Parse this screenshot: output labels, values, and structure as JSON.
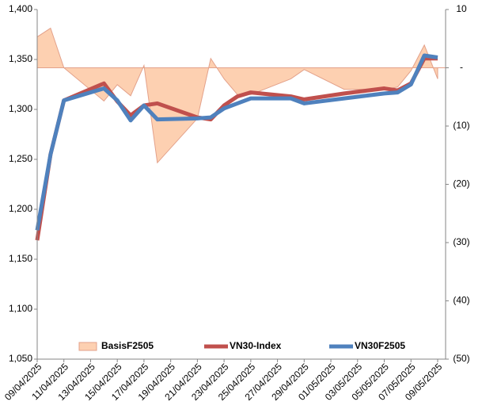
{
  "chart_data": {
    "type": "combo",
    "x": [
      "09/04/2025",
      "10/04/2025",
      "11/04/2025",
      "14/04/2025",
      "15/04/2025",
      "16/04/2025",
      "17/04/2025",
      "18/04/2025",
      "21/04/2025",
      "22/04/2025",
      "23/04/2025",
      "24/04/2025",
      "25/04/2025",
      "28/04/2025",
      "29/04/2025",
      "02/05/2025",
      "05/05/2025",
      "06/05/2025",
      "07/05/2025",
      "08/05/2025",
      "09/05/2025"
    ],
    "xlim": [
      "09/04/2025",
      "09/05/2025"
    ],
    "xticks": [
      "09/04/2025",
      "11/04/2025",
      "13/04/2025",
      "15/04/2025",
      "17/04/2025",
      "19/04/2025",
      "21/04/2025",
      "23/04/2025",
      "25/04/2025",
      "27/04/2025",
      "29/04/2025",
      "01/05/2025",
      "03/05/2025",
      "05/05/2025",
      "07/05/2025",
      "09/05/2025"
    ],
    "ylim": [
      1050,
      1400
    ],
    "yticks": [
      {
        "value": 1050,
        "label": "1,050"
      },
      {
        "value": 1100,
        "label": "1,100"
      },
      {
        "value": 1150,
        "label": "1,150"
      },
      {
        "value": 1200,
        "label": "1,200"
      },
      {
        "value": 1250,
        "label": "1,250"
      },
      {
        "value": 1300,
        "label": "1,300"
      },
      {
        "value": 1350,
        "label": "1,350"
      },
      {
        "value": 1400,
        "label": "1,400"
      }
    ],
    "y2lim": [
      -50,
      10
    ],
    "y2ticks": [
      {
        "value": 10,
        "label": "10"
      },
      {
        "value": 0,
        "label": "-"
      },
      {
        "value": -10,
        "label": "(10)"
      },
      {
        "value": -20,
        "label": "(20)"
      },
      {
        "value": -30,
        "label": "(30)"
      },
      {
        "value": -40,
        "label": "(40)"
      },
      {
        "value": -50,
        "label": "(50)"
      }
    ],
    "legend": "bottom",
    "series": [
      {
        "name": "BasisF2505",
        "kind": "area",
        "axis": "y2",
        "color": "#fdd0b1",
        "values": [
          5.3,
          6.8,
          0,
          -5.7,
          -2.9,
          -4.8,
          0.4,
          -16.3,
          -8.7,
          1.6,
          -1.9,
          -4.6,
          -4.6,
          -1.9,
          -0.3,
          -3.7,
          -3.7,
          -3.3,
          -0.5,
          3.9,
          -1.9
        ]
      },
      {
        "name": "VN30-Index",
        "kind": "line",
        "color": "#c0504d",
        "values": [
          1169,
          1255,
          1309,
          1326,
          1308,
          1294,
          1304,
          1306,
          1292,
          1290,
          1304,
          1313,
          1317,
          1313,
          1310,
          1316,
          1321,
          1319,
          1326,
          1351,
          1351
        ]
      },
      {
        "name": "VN30F2505",
        "kind": "line",
        "color": "#4f81bd",
        "values": [
          1179,
          1255,
          1309,
          1321,
          1309,
          1289,
          1304,
          1290,
          1291,
          1292,
          1301,
          1306,
          1311,
          1311,
          1306,
          1311,
          1316,
          1317,
          1325,
          1354,
          1352
        ]
      }
    ]
  }
}
